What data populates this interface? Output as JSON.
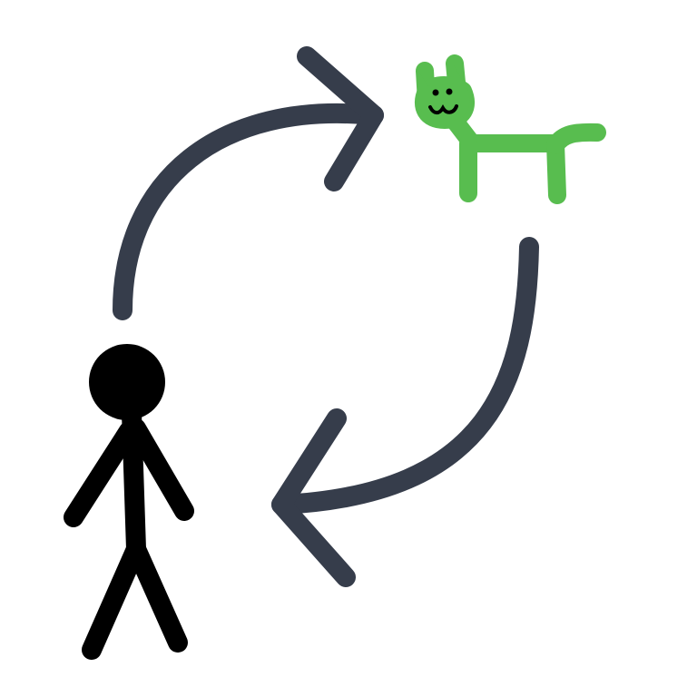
{
  "diagram": {
    "background": "#ffffff",
    "arrow_color": "#363d4b",
    "person_color": "#000000",
    "cat_color": "#58bd4f",
    "cat_face_color": "#000000",
    "nodes": [
      {
        "id": "person",
        "icon": "stick-figure-icon"
      },
      {
        "id": "cat",
        "icon": "cat-icon"
      }
    ],
    "edges": [
      {
        "from": "person",
        "to": "cat",
        "icon": "curved-arrow-icon"
      },
      {
        "from": "cat",
        "to": "person",
        "icon": "curved-arrow-icon"
      }
    ]
  }
}
